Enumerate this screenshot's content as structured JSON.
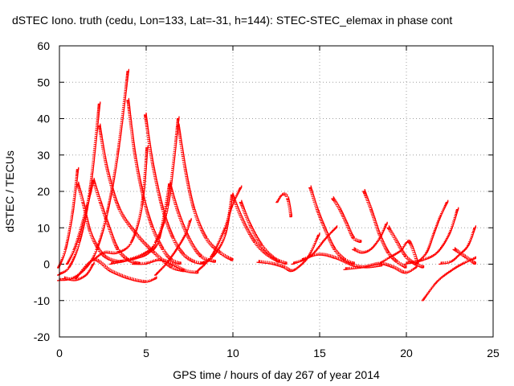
{
  "chart_data": {
    "type": "scatter",
    "title": "dSTEC Iono. truth (cedu, Lon=133, Lat=-31, h=144): STEC-STEC_elemax in phase cont",
    "xlabel": "GPS time / hours of day 267 of year 2014",
    "ylabel": "dSTEC  / TECUs",
    "xlim": [
      0,
      25
    ],
    "ylim": [
      -20,
      60
    ],
    "xticks": [
      "0",
      "5",
      "10",
      "15",
      "20",
      "25"
    ],
    "yticks": [
      "-20",
      "-10",
      "0",
      "10",
      "20",
      "30",
      "40",
      "50",
      "60"
    ],
    "grid": true,
    "marker": "+",
    "color": "#ff0000",
    "series": [
      {
        "x": [
          0.0,
          0.4,
          0.8,
          1.1
        ],
        "y": [
          -1.0,
          4.0,
          14.0,
          26.0
        ]
      },
      {
        "x": [
          1.1,
          1.4,
          1.8,
          2.3,
          2.8,
          3.5,
          4.0
        ],
        "y": [
          22.0,
          17.0,
          9.0,
          4.0,
          1.5,
          0.5,
          1.0
        ]
      },
      {
        "x": [
          0.5,
          0.9,
          1.3,
          1.7,
          2.0
        ],
        "y": [
          0.0,
          4.0,
          10.0,
          17.0,
          23.0
        ]
      },
      {
        "x": [
          2.0,
          2.4,
          2.9,
          3.4,
          4.0,
          4.6
        ],
        "y": [
          23.0,
          17.0,
          10.0,
          4.0,
          1.0,
          0.0
        ]
      },
      {
        "x": [
          0.0,
          0.6,
          1.2,
          1.8,
          2.35
        ],
        "y": [
          -3.0,
          -1.0,
          6.0,
          20.0,
          44.0
        ]
      },
      {
        "x": [
          2.35,
          2.8,
          3.5,
          4.5,
          5.5,
          6.5,
          7.2
        ],
        "y": [
          38.0,
          26.0,
          15.0,
          8.0,
          3.0,
          -1.0,
          -2.0
        ]
      },
      {
        "x": [
          0.0,
          0.8,
          1.6,
          2.2,
          2.8,
          3.4,
          4.0
        ],
        "y": [
          -4.5,
          -4.0,
          -1.0,
          4.0,
          14.0,
          30.0,
          53.0
        ]
      },
      {
        "x": [
          4.0,
          4.4,
          4.9,
          5.4,
          6.0,
          6.5,
          7.0
        ],
        "y": [
          45.0,
          30.0,
          18.0,
          10.0,
          4.0,
          1.0,
          0.0
        ]
      },
      {
        "x": [
          0.3,
          1.0,
          1.6,
          2.0
        ],
        "y": [
          -4.0,
          -4.5,
          -3.0,
          0.0
        ]
      },
      {
        "x": [
          2.0,
          2.6,
          3.4,
          4.2,
          4.8,
          5.1
        ],
        "y": [
          1.0,
          3.0,
          3.0,
          6.0,
          16.0,
          32.0
        ]
      },
      {
        "x": [
          5.0,
          5.4,
          6.0,
          6.6,
          7.2,
          7.8,
          8.4
        ],
        "y": [
          41.0,
          28.0,
          15.0,
          7.0,
          2.5,
          0.5,
          0.0
        ]
      },
      {
        "x": [
          3.0,
          4.0,
          5.0,
          5.6,
          6.3,
          6.9
        ],
        "y": [
          0.0,
          1.0,
          3.0,
          6.0,
          16.0,
          40.0
        ]
      },
      {
        "x": [
          6.9,
          7.3,
          7.8,
          8.5,
          9.3,
          10.0
        ],
        "y": [
          38.0,
          26.0,
          15.0,
          7.0,
          3.0,
          1.0
        ]
      },
      {
        "x": [
          1.0,
          2.0,
          3.0,
          4.0,
          5.0,
          5.6
        ],
        "y": [
          -4.0,
          1.0,
          -2.0,
          -4.0,
          -5.0,
          -4.0
        ]
      },
      {
        "x": [
          5.6,
          6.2,
          6.8,
          7.3,
          7.6
        ],
        "y": [
          -3.0,
          0.0,
          4.0,
          8.0,
          12.0
        ]
      },
      {
        "x": [
          3.5,
          4.5,
          5.2,
          5.8,
          6.4
        ],
        "y": [
          0.5,
          1.5,
          3.0,
          7.0,
          22.0
        ]
      },
      {
        "x": [
          6.4,
          6.9,
          7.5,
          8.2,
          9.0
        ],
        "y": [
          22.0,
          14.0,
          7.0,
          2.0,
          0.5
        ]
      },
      {
        "x": [
          4.3,
          5.0,
          5.8,
          6.5,
          7.3,
          8.0
        ],
        "y": [
          0.0,
          0.0,
          1.0,
          0.0,
          -2.0,
          -2.5
        ]
      },
      {
        "x": [
          8.0,
          8.8,
          9.6,
          10.0,
          10.5
        ],
        "y": [
          -2.0,
          2.0,
          10.0,
          16.0,
          21.0
        ]
      },
      {
        "x": [
          10.5,
          11.0,
          11.7,
          12.4,
          13.1
        ],
        "y": [
          17.0,
          11.0,
          5.0,
          1.5,
          0.0
        ]
      },
      {
        "x": [
          8.2,
          8.9,
          9.6,
          10.0
        ],
        "y": [
          0.0,
          2.0,
          8.0,
          19.0
        ]
      },
      {
        "x": [
          10.0,
          10.6,
          11.3,
          12.0,
          12.7
        ],
        "y": [
          19.0,
          12.0,
          6.0,
          2.5,
          0.5
        ]
      },
      {
        "x": [
          12.6,
          12.9,
          13.2,
          13.4
        ],
        "y": [
          17.0,
          19.0,
          18.0,
          13.0
        ]
      },
      {
        "x": [
          11.5,
          12.3,
          13.0,
          13.4,
          13.8,
          14.4,
          15.0
        ],
        "y": [
          0.5,
          0.0,
          -1.0,
          -2.0,
          -1.0,
          2.0,
          8.0
        ]
      },
      {
        "x": [
          14.5,
          14.9,
          15.4,
          15.9,
          16.5,
          17.0
        ],
        "y": [
          21.0,
          15.0,
          9.0,
          4.0,
          1.0,
          0.0
        ]
      },
      {
        "x": [
          13.5,
          14.5,
          15.4,
          16.0
        ],
        "y": [
          0.0,
          2.0,
          7.0,
          10.0
        ]
      },
      {
        "x": [
          15.8,
          16.2,
          16.6,
          17.0,
          17.4
        ],
        "y": [
          18.0,
          15.0,
          11.0,
          7.0,
          6.0
        ]
      },
      {
        "x": [
          14.0,
          15.0,
          16.0,
          17.0,
          17.8,
          18.6
        ],
        "y": [
          1.0,
          2.5,
          1.5,
          -0.5,
          -1.0,
          -0.5
        ]
      },
      {
        "x": [
          17.6,
          18.0,
          18.5,
          19.0,
          19.5,
          20.0
        ],
        "y": [
          20.0,
          15.0,
          8.0,
          3.0,
          0.5,
          -1.0
        ]
      },
      {
        "x": [
          17.0,
          17.5,
          18.0,
          18.5,
          18.9
        ],
        "y": [
          4.0,
          3.0,
          4.0,
          7.0,
          11.0
        ]
      },
      {
        "x": [
          19.0,
          19.5,
          20.0,
          20.5,
          21.0
        ],
        "y": [
          10.0,
          6.0,
          2.0,
          0.0,
          -1.0
        ]
      },
      {
        "x": [
          18.5,
          19.0,
          19.7,
          20.2,
          20.7
        ],
        "y": [
          0.0,
          1.5,
          3.5,
          6.0,
          0.0
        ]
      },
      {
        "x": [
          16.5,
          17.5,
          18.5,
          19.3,
          20.0,
          20.6
        ],
        "y": [
          -1.5,
          -1.0,
          0.0,
          -1.0,
          -2.5,
          -1.0
        ]
      },
      {
        "x": [
          20.6,
          21.2,
          21.6,
          22.0,
          22.4
        ],
        "y": [
          0.0,
          3.0,
          8.0,
          13.0,
          17.0
        ]
      },
      {
        "x": [
          20.0,
          21.0,
          21.8,
          22.5,
          23.0
        ],
        "y": [
          0.0,
          1.0,
          3.0,
          8.0,
          15.0
        ]
      },
      {
        "x": [
          21.0,
          21.8,
          22.6,
          23.3,
          24.0
        ],
        "y": [
          -10.0,
          -5.0,
          -2.0,
          0.0,
          1.5
        ]
      },
      {
        "x": [
          22.0,
          22.6,
          23.1,
          23.6,
          24.0
        ],
        "y": [
          0.0,
          0.5,
          2.5,
          5.0,
          10.0
        ]
      },
      {
        "x": [
          22.8,
          23.4,
          24.0
        ],
        "y": [
          4.0,
          2.0,
          0.0
        ]
      }
    ]
  }
}
